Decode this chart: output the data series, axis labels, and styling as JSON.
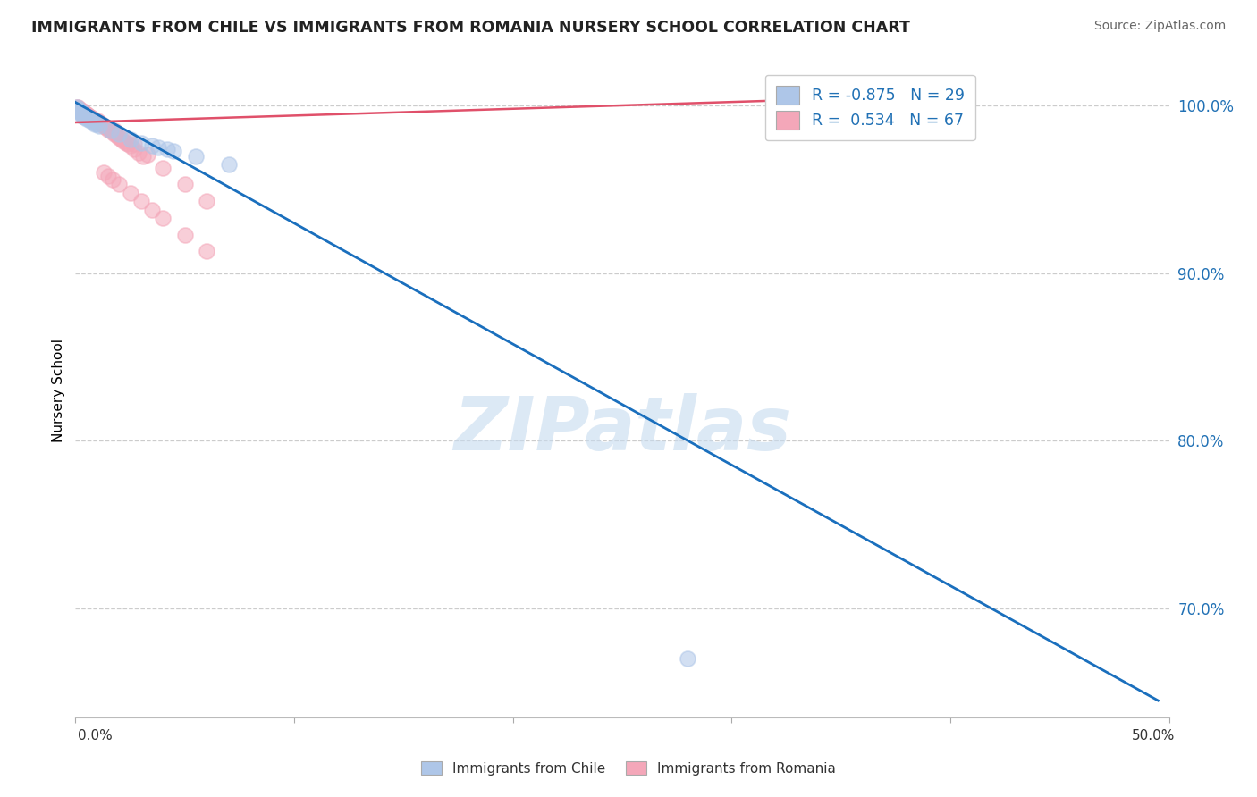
{
  "title": "IMMIGRANTS FROM CHILE VS IMMIGRANTS FROM ROMANIA NURSERY SCHOOL CORRELATION CHART",
  "source": "Source: ZipAtlas.com",
  "ylabel": "Nursery School",
  "ytick_values": [
    0.7,
    0.8,
    0.9,
    1.0
  ],
  "ytick_labels": [
    "70.0%",
    "80.0%",
    "90.0%",
    "100.0%"
  ],
  "xlim": [
    0.0,
    0.5
  ],
  "ylim": [
    0.635,
    1.025
  ],
  "chile_R": -0.875,
  "chile_N": 29,
  "romania_R": 0.534,
  "romania_N": 67,
  "chile_color": "#aec6e8",
  "romania_color": "#f4a7b9",
  "chile_line_color": "#1a6fbd",
  "romania_line_color": "#e0506a",
  "background_color": "#ffffff",
  "grid_color": "#cccccc",
  "watermark": "ZIPatlas",
  "watermark_color": "#c6dbef",
  "legend_text_color": "#2171b5",
  "right_tick_color": "#2171b5",
  "chile_scatter_x": [
    0.0005,
    0.001,
    0.0015,
    0.002,
    0.002,
    0.003,
    0.003,
    0.003,
    0.004,
    0.004,
    0.005,
    0.005,
    0.006,
    0.007,
    0.008,
    0.009,
    0.01,
    0.011,
    0.016,
    0.02,
    0.025,
    0.03,
    0.035,
    0.038,
    0.042,
    0.045,
    0.055,
    0.07,
    0.28
  ],
  "chile_scatter_y": [
    0.999,
    0.998,
    0.997,
    0.997,
    0.996,
    0.996,
    0.995,
    0.994,
    0.994,
    0.993,
    0.993,
    0.992,
    0.992,
    0.991,
    0.99,
    0.989,
    0.989,
    0.988,
    0.985,
    0.983,
    0.98,
    0.978,
    0.976,
    0.975,
    0.974,
    0.973,
    0.97,
    0.965,
    0.67
  ],
  "romania_scatter_x": [
    0.0005,
    0.001,
    0.001,
    0.001,
    0.0015,
    0.002,
    0.002,
    0.002,
    0.003,
    0.003,
    0.003,
    0.003,
    0.004,
    0.004,
    0.004,
    0.004,
    0.005,
    0.005,
    0.005,
    0.005,
    0.006,
    0.006,
    0.006,
    0.007,
    0.007,
    0.007,
    0.008,
    0.008,
    0.009,
    0.009,
    0.01,
    0.01,
    0.011,
    0.012,
    0.013,
    0.014,
    0.015,
    0.016,
    0.017,
    0.018,
    0.019,
    0.02,
    0.021,
    0.022,
    0.023,
    0.024,
    0.025,
    0.027,
    0.029,
    0.031,
    0.013,
    0.015,
    0.017,
    0.02,
    0.025,
    0.03,
    0.035,
    0.04,
    0.05,
    0.06,
    0.018,
    0.022,
    0.027,
    0.033,
    0.04,
    0.05,
    0.06
  ],
  "romania_scatter_y": [
    0.999,
    0.999,
    0.998,
    0.998,
    0.998,
    0.998,
    0.997,
    0.997,
    0.997,
    0.997,
    0.996,
    0.996,
    0.996,
    0.996,
    0.995,
    0.995,
    0.995,
    0.995,
    0.994,
    0.994,
    0.994,
    0.994,
    0.993,
    0.993,
    0.993,
    0.992,
    0.992,
    0.992,
    0.991,
    0.991,
    0.991,
    0.99,
    0.99,
    0.989,
    0.988,
    0.987,
    0.986,
    0.985,
    0.984,
    0.983,
    0.982,
    0.981,
    0.98,
    0.979,
    0.978,
    0.977,
    0.976,
    0.974,
    0.972,
    0.97,
    0.96,
    0.958,
    0.956,
    0.953,
    0.948,
    0.943,
    0.938,
    0.933,
    0.923,
    0.913,
    0.985,
    0.981,
    0.977,
    0.971,
    0.963,
    0.953,
    0.943
  ],
  "chile_line_x0": 0.0,
  "chile_line_x1": 0.495,
  "chile_line_y0": 1.002,
  "chile_line_y1": 0.645,
  "romania_line_x0": 0.0,
  "romania_line_x1": 0.32,
  "romania_line_y0": 0.99,
  "romania_line_y1": 1.003
}
